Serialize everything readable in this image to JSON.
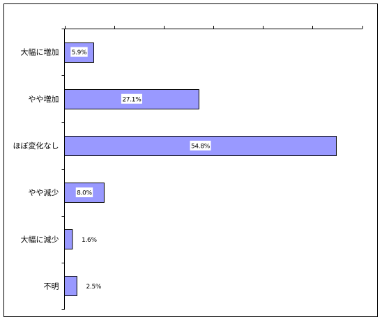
{
  "chart_data": {
    "type": "bar",
    "orientation": "horizontal",
    "categories": [
      "大幅に増加",
      "やや増加",
      "ほぼ変化なし",
      "やや減少",
      "大幅に減少",
      "不明"
    ],
    "values": [
      5.9,
      27.1,
      54.8,
      8.0,
      1.6,
      2.5
    ],
    "data_labels": [
      "5.9%",
      "27.1%",
      "54.8%",
      "8.0%",
      "1.6%",
      "2.5%"
    ],
    "xlim": [
      0,
      60
    ],
    "title": "",
    "xlabel": "",
    "ylabel": "",
    "grid": false,
    "legend": "none",
    "colors": {
      "bar_fill": "#9999ff",
      "bar_stroke": "#000000",
      "axis": "#000000",
      "frame": "#000000",
      "label_box": "#ffffff"
    }
  }
}
